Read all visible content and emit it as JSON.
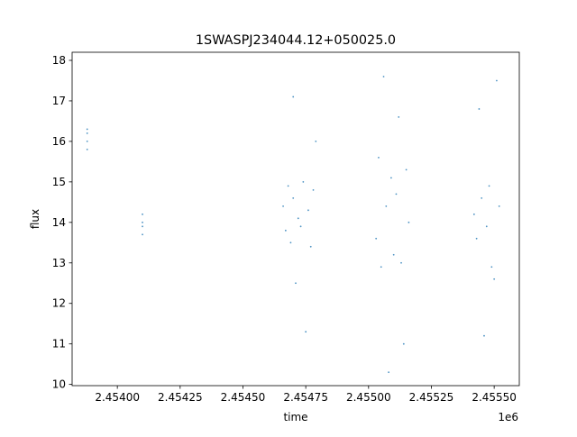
{
  "chart_data": {
    "type": "scatter",
    "title": "1SWASPJ234044.12+050025.0",
    "xlabel": "time",
    "ylabel": "flux",
    "x_offset_label": "1e6",
    "xlim": [
      2.45382,
      2.4556
    ],
    "ylim": [
      9.97,
      18.2
    ],
    "x_ticks": [
      2.454,
      2.45425,
      2.4545,
      2.45475,
      2.455,
      2.45525,
      2.4555
    ],
    "x_tick_labels": [
      "2.45400",
      "2.45425",
      "2.45450",
      "2.45475",
      "2.45500",
      "2.45525",
      "2.45550"
    ],
    "y_ticks": [
      10,
      11,
      12,
      13,
      14,
      15,
      16,
      17,
      18
    ],
    "y_tick_labels": [
      "10",
      "11",
      "12",
      "13",
      "14",
      "15",
      "16",
      "17",
      "18"
    ],
    "grid": false,
    "marker_color": "#1f77b4",
    "series": [
      {
        "values": [
          {
            "x": 2.45388,
            "y": 16.3
          },
          {
            "x": 2.45388,
            "y": 16.0
          },
          {
            "x": 2.45388,
            "y": 15.8
          },
          {
            "x": 2.45388,
            "y": 16.2
          },
          {
            "x": 2.4541,
            "y": 14.2
          },
          {
            "x": 2.4541,
            "y": 13.9
          },
          {
            "x": 2.4541,
            "y": 13.7
          },
          {
            "x": 2.4541,
            "y": 14.0
          },
          {
            "x": 2.45466,
            "y": 14.4
          },
          {
            "x": 2.45467,
            "y": 13.8
          },
          {
            "x": 2.45468,
            "y": 14.9
          },
          {
            "x": 2.45469,
            "y": 13.5
          },
          {
            "x": 2.4547,
            "y": 14.6
          },
          {
            "x": 2.4547,
            "y": 17.1
          },
          {
            "x": 2.45471,
            "y": 12.5
          },
          {
            "x": 2.45472,
            "y": 14.1
          },
          {
            "x": 2.45473,
            "y": 13.9
          },
          {
            "x": 2.45474,
            "y": 15.0
          },
          {
            "x": 2.45475,
            "y": 11.3
          },
          {
            "x": 2.45476,
            "y": 14.3
          },
          {
            "x": 2.45477,
            "y": 13.4
          },
          {
            "x": 2.45478,
            "y": 14.8
          },
          {
            "x": 2.45479,
            "y": 16.0
          },
          {
            "x": 2.45503,
            "y": 13.6
          },
          {
            "x": 2.45504,
            "y": 15.6
          },
          {
            "x": 2.45505,
            "y": 12.9
          },
          {
            "x": 2.45506,
            "y": 17.6
          },
          {
            "x": 2.45507,
            "y": 14.4
          },
          {
            "x": 2.45508,
            "y": 10.3
          },
          {
            "x": 2.45509,
            "y": 15.1
          },
          {
            "x": 2.4551,
            "y": 13.2
          },
          {
            "x": 2.45511,
            "y": 14.7
          },
          {
            "x": 2.45512,
            "y": 16.6
          },
          {
            "x": 2.45513,
            "y": 13.0
          },
          {
            "x": 2.45514,
            "y": 11.0
          },
          {
            "x": 2.45515,
            "y": 15.3
          },
          {
            "x": 2.45516,
            "y": 14.0
          },
          {
            "x": 2.45542,
            "y": 14.2
          },
          {
            "x": 2.45543,
            "y": 13.6
          },
          {
            "x": 2.45544,
            "y": 16.8
          },
          {
            "x": 2.45545,
            "y": 14.6
          },
          {
            "x": 2.45546,
            "y": 11.2
          },
          {
            "x": 2.45547,
            "y": 13.9
          },
          {
            "x": 2.45548,
            "y": 14.9
          },
          {
            "x": 2.45549,
            "y": 12.9
          },
          {
            "x": 2.4555,
            "y": 12.6
          },
          {
            "x": 2.45551,
            "y": 17.5
          },
          {
            "x": 2.45552,
            "y": 14.4
          }
        ]
      }
    ]
  }
}
